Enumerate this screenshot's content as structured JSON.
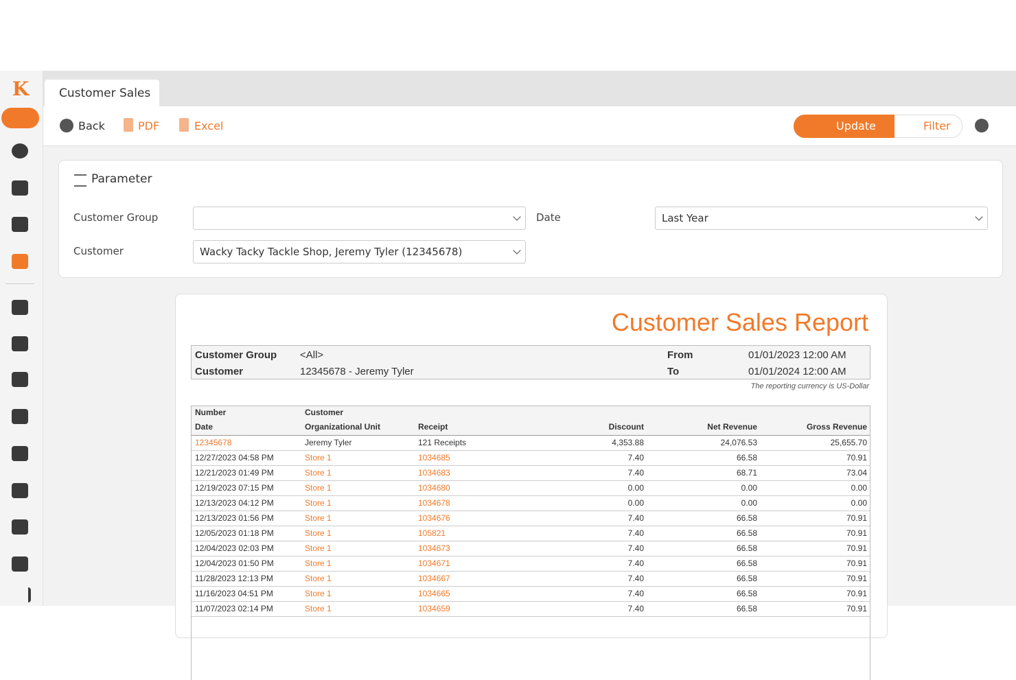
{
  "tab": "Customer Sales",
  "toolbar": {
    "back": "Back",
    "pdf": "PDF",
    "excel": "Excel",
    "update": "Update",
    "filter": "Filter"
  },
  "parameter": {
    "title": "Parameter",
    "customer_group": {
      "label": "Customer Group"
    },
    "date": {
      "label": "Date",
      "value": "Last Year"
    },
    "customer": {
      "label": "Customer",
      "value": "Wacky Tacky Tackle Shop, Jeremy Tyler (12345678)"
    }
  },
  "report": {
    "title": "Customer Sales Report",
    "summary": {
      "customer_group_label": "Customer Group",
      "customer_group": "<All>",
      "customer_label": "Customer",
      "customer": "12345678 - Jeremy Tyler",
      "from_label": "From",
      "from": "01/01/2023 12:00 AM",
      "to_label": "To",
      "to": "01/01/2024 12:00 AM"
    },
    "currency_note": "The reporting currency is US-Dollar",
    "header_top": [
      "Number",
      "Customer"
    ],
    "header": [
      "Date",
      "Organizational Unit",
      "Receipt",
      "Discount",
      "Net Revenue",
      "Gross Revenue"
    ],
    "total_row": [
      "12345678",
      "Jeremy Tyler",
      "121 Receipts",
      "4,353.88",
      "24,076.53",
      "25,655.70"
    ],
    "rows": [
      [
        "12/27/2023 04:58 PM",
        "Store 1",
        "1034685",
        "7.40",
        "66.58",
        "70.91"
      ],
      [
        "12/21/2023 01:49 PM",
        "Store 1",
        "1034683",
        "7.40",
        "68.71",
        "73.04"
      ],
      [
        "12/19/2023 07:15 PM",
        "Store 1",
        "1034680",
        "0.00",
        "0.00",
        "0.00"
      ],
      [
        "12/13/2023 04:12 PM",
        "Store 1",
        "1034678",
        "0.00",
        "0.00",
        "0.00"
      ],
      [
        "12/13/2023 01:56 PM",
        "Store 1",
        "1034676",
        "7.40",
        "66.58",
        "70.91"
      ],
      [
        "12/05/2023 01:18 PM",
        "Store 1",
        "105821",
        "7.40",
        "66.58",
        "70.91"
      ],
      [
        "12/04/2023 02:03 PM",
        "Store 1",
        "1034673",
        "7.40",
        "66.58",
        "70.91"
      ],
      [
        "12/04/2023 01:50 PM",
        "Store 1",
        "1034671",
        "7.40",
        "66.58",
        "70.91"
      ],
      [
        "11/28/2023 12:13 PM",
        "Store 1",
        "1034667",
        "7.40",
        "66.58",
        "70.91"
      ],
      [
        "11/16/2023 04:51 PM",
        "Store 1",
        "1034665",
        "7.40",
        "66.58",
        "70.91"
      ],
      [
        "11/07/2023 02:14 PM",
        "Store 1",
        "1034659",
        "7.40",
        "66.58",
        "70.91"
      ]
    ]
  }
}
